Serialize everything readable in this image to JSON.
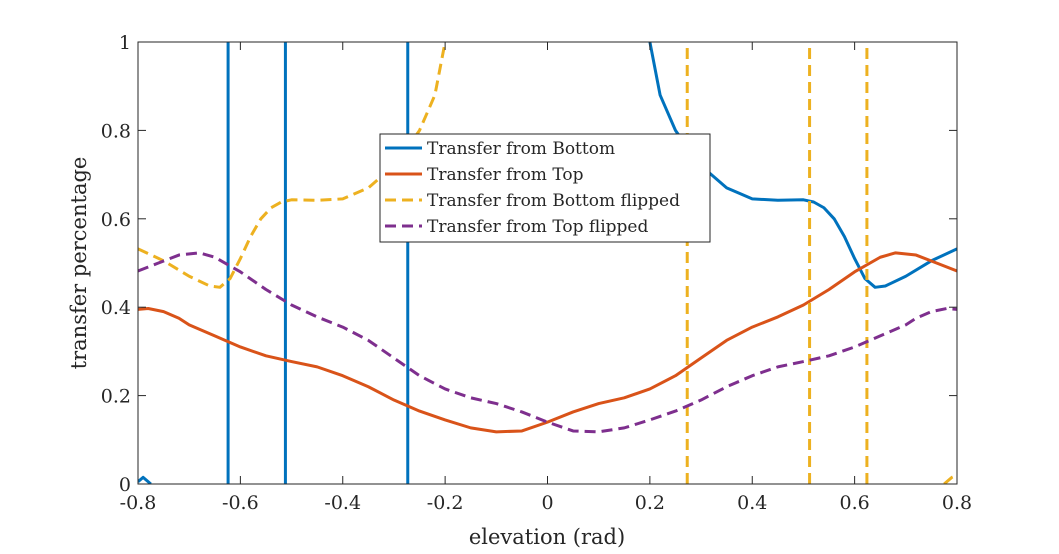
{
  "chart_data": {
    "type": "line",
    "xlabel": "elevation (rad)",
    "ylabel": "transfer percentage",
    "xlim": [
      -0.8,
      0.8
    ],
    "ylim": [
      0,
      1
    ],
    "x_ticks": [
      -0.8,
      -0.6,
      -0.4,
      -0.2,
      0,
      0.2,
      0.4,
      0.6,
      0.8
    ],
    "x_tick_labels": [
      "-0.8",
      "-0.6",
      "-0.4",
      "-0.2",
      "0",
      "0.2",
      "0.4",
      "0.6",
      "0.8"
    ],
    "y_ticks": [
      0,
      0.2,
      0.4,
      0.6,
      0.8,
      1
    ],
    "y_tick_labels": [
      "0",
      "0.2",
      "0.4",
      "0.6",
      "0.8",
      "1"
    ],
    "grid": false,
    "legend_position": "center",
    "series": [
      {
        "name": "Transfer from Bottom",
        "color": "#0072BD",
        "dash": "solid",
        "segments": [
          [
            [
              -0.8,
              0.005
            ],
            [
              -0.79,
              0.015
            ],
            [
              -0.78,
              0.005
            ],
            [
              -0.775,
              0.0
            ]
          ],
          [
            [
              -0.624,
              0.0
            ],
            [
              -0.624,
              1.0
            ]
          ],
          [
            [
              -0.512,
              0.0
            ],
            [
              -0.512,
              1.0
            ]
          ],
          [
            [
              -0.273,
              0.0
            ],
            [
              -0.273,
              1.0
            ]
          ],
          [
            [
              0.2,
              1.0
            ],
            [
              0.22,
              0.88
            ],
            [
              0.25,
              0.8
            ],
            [
              0.28,
              0.75
            ],
            [
              0.3,
              0.72
            ],
            [
              0.33,
              0.69
            ],
            [
              0.35,
              0.67
            ],
            [
              0.37,
              0.66
            ],
            [
              0.4,
              0.645
            ],
            [
              0.45,
              0.642
            ],
            [
              0.5,
              0.643
            ],
            [
              0.52,
              0.638
            ],
            [
              0.54,
              0.625
            ],
            [
              0.56,
              0.6
            ],
            [
              0.58,
              0.56
            ],
            [
              0.6,
              0.51
            ],
            [
              0.62,
              0.465
            ],
            [
              0.64,
              0.445
            ],
            [
              0.66,
              0.448
            ],
            [
              0.7,
              0.47
            ],
            [
              0.75,
              0.505
            ],
            [
              0.8,
              0.532
            ]
          ]
        ]
      },
      {
        "name": "Transfer from Top",
        "color": "#D95319",
        "dash": "solid",
        "segments": [
          [
            [
              -0.8,
              0.395
            ],
            [
              -0.78,
              0.397
            ],
            [
              -0.75,
              0.39
            ],
            [
              -0.72,
              0.375
            ],
            [
              -0.7,
              0.36
            ],
            [
              -0.65,
              0.335
            ],
            [
              -0.6,
              0.31
            ],
            [
              -0.55,
              0.29
            ],
            [
              -0.5,
              0.277
            ],
            [
              -0.45,
              0.265
            ],
            [
              -0.4,
              0.245
            ],
            [
              -0.35,
              0.22
            ],
            [
              -0.3,
              0.19
            ],
            [
              -0.25,
              0.165
            ],
            [
              -0.2,
              0.145
            ],
            [
              -0.15,
              0.127
            ],
            [
              -0.1,
              0.118
            ],
            [
              -0.05,
              0.12
            ],
            [
              0.0,
              0.14
            ],
            [
              0.05,
              0.163
            ],
            [
              0.1,
              0.182
            ],
            [
              0.15,
              0.195
            ],
            [
              0.2,
              0.215
            ],
            [
              0.25,
              0.245
            ],
            [
              0.3,
              0.285
            ],
            [
              0.35,
              0.325
            ],
            [
              0.4,
              0.355
            ],
            [
              0.45,
              0.378
            ],
            [
              0.5,
              0.405
            ],
            [
              0.55,
              0.44
            ],
            [
              0.6,
              0.48
            ],
            [
              0.65,
              0.513
            ],
            [
              0.68,
              0.523
            ],
            [
              0.72,
              0.518
            ],
            [
              0.76,
              0.5
            ],
            [
              0.8,
              0.482
            ]
          ]
        ]
      },
      {
        "name": "Transfer from Bottom flipped",
        "color": "#EDB120",
        "dash": "dashed",
        "segments": [
          [
            [
              -0.8,
              0.532
            ],
            [
              -0.75,
              0.505
            ],
            [
              -0.7,
              0.47
            ],
            [
              -0.66,
              0.448
            ],
            [
              -0.64,
              0.445
            ],
            [
              -0.62,
              0.465
            ],
            [
              -0.6,
              0.51
            ],
            [
              -0.58,
              0.56
            ],
            [
              -0.56,
              0.6
            ],
            [
              -0.54,
              0.625
            ],
            [
              -0.52,
              0.638
            ],
            [
              -0.5,
              0.643
            ],
            [
              -0.45,
              0.642
            ],
            [
              -0.4,
              0.645
            ],
            [
              -0.37,
              0.66
            ],
            [
              -0.35,
              0.67
            ],
            [
              -0.33,
              0.69
            ],
            [
              -0.3,
              0.72
            ],
            [
              -0.28,
              0.75
            ],
            [
              -0.25,
              0.8
            ],
            [
              -0.22,
              0.88
            ],
            [
              -0.2,
              1.0
            ]
          ],
          [
            [
              0.273,
              0.0
            ],
            [
              0.273,
              1.0
            ]
          ],
          [
            [
              0.512,
              0.0
            ],
            [
              0.512,
              1.0
            ]
          ],
          [
            [
              0.624,
              0.0
            ],
            [
              0.624,
              1.0
            ]
          ],
          [
            [
              0.775,
              0.0
            ],
            [
              0.78,
              0.005
            ],
            [
              0.79,
              0.015
            ],
            [
              0.8,
              0.02
            ]
          ]
        ]
      },
      {
        "name": "Transfer from Top flipped",
        "color": "#7E2F8E",
        "dash": "dashed",
        "segments": [
          [
            [
              -0.8,
              0.482
            ],
            [
              -0.76,
              0.5
            ],
            [
              -0.72,
              0.518
            ],
            [
              -0.68,
              0.523
            ],
            [
              -0.65,
              0.513
            ],
            [
              -0.6,
              0.48
            ],
            [
              -0.55,
              0.44
            ],
            [
              -0.5,
              0.405
            ],
            [
              -0.45,
              0.378
            ],
            [
              -0.4,
              0.355
            ],
            [
              -0.35,
              0.325
            ],
            [
              -0.3,
              0.285
            ],
            [
              -0.25,
              0.245
            ],
            [
              -0.2,
              0.215
            ],
            [
              -0.15,
              0.195
            ],
            [
              -0.1,
              0.182
            ],
            [
              -0.05,
              0.163
            ],
            [
              0.0,
              0.14
            ],
            [
              0.05,
              0.12
            ],
            [
              0.1,
              0.118
            ],
            [
              0.15,
              0.127
            ],
            [
              0.2,
              0.145
            ],
            [
              0.25,
              0.165
            ],
            [
              0.3,
              0.19
            ],
            [
              0.35,
              0.22
            ],
            [
              0.4,
              0.245
            ],
            [
              0.45,
              0.265
            ],
            [
              0.5,
              0.277
            ],
            [
              0.55,
              0.29
            ],
            [
              0.6,
              0.31
            ],
            [
              0.65,
              0.335
            ],
            [
              0.7,
              0.36
            ],
            [
              0.72,
              0.375
            ],
            [
              0.75,
              0.39
            ],
            [
              0.78,
              0.397
            ],
            [
              0.8,
              0.395
            ]
          ]
        ]
      }
    ]
  }
}
